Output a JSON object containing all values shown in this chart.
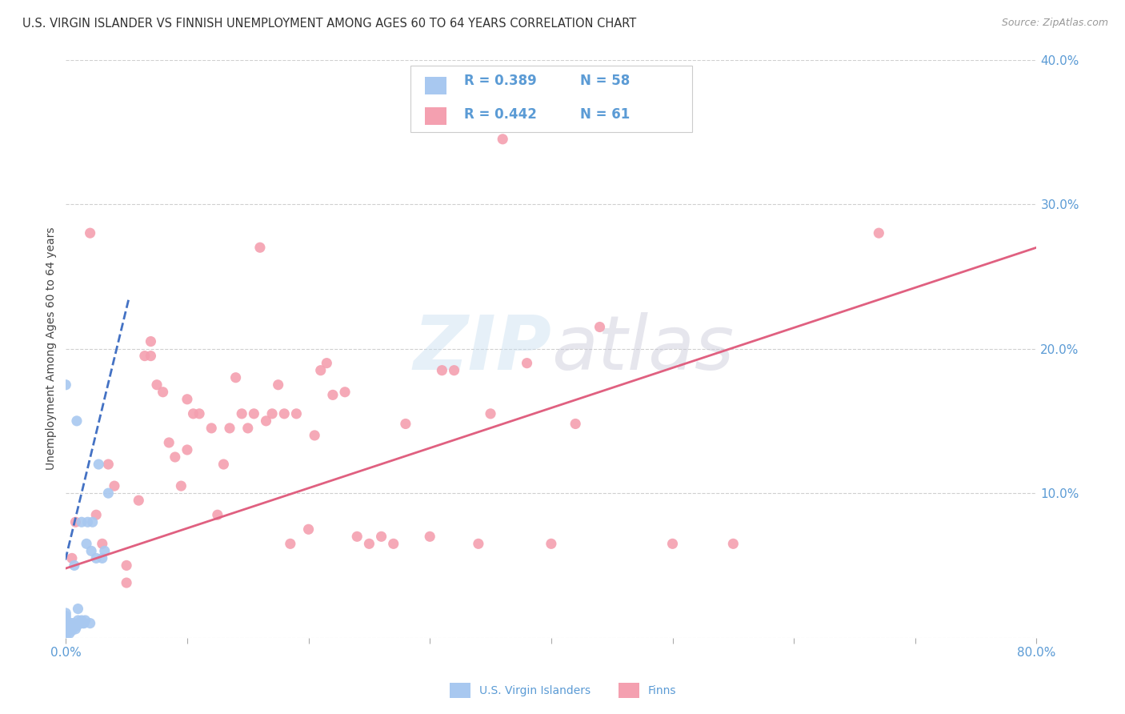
{
  "title": "U.S. VIRGIN ISLANDER VS FINNISH UNEMPLOYMENT AMONG AGES 60 TO 64 YEARS CORRELATION CHART",
  "source": "Source: ZipAtlas.com",
  "ylabel": "Unemployment Among Ages 60 to 64 years",
  "xlim": [
    0,
    0.8
  ],
  "ylim": [
    0,
    0.4
  ],
  "xticks": [
    0.0,
    0.1,
    0.2,
    0.3,
    0.4,
    0.5,
    0.6,
    0.7,
    0.8
  ],
  "yticks": [
    0.0,
    0.1,
    0.2,
    0.3,
    0.4
  ],
  "xtick_labels": [
    "0.0%",
    "",
    "",
    "",
    "",
    "",
    "",
    "",
    "80.0%"
  ],
  "ytick_labels": [
    "",
    "10.0%",
    "20.0%",
    "30.0%",
    "40.0%"
  ],
  "title_color": "#333333",
  "title_fontsize": 10.5,
  "axis_color": "#5b9bd5",
  "watermark_zip": "ZIP",
  "watermark_atlas": "atlas",
  "legend_entries": [
    {
      "label": "U.S. Virgin Islanders",
      "color": "#a8c8f0",
      "R": 0.389,
      "N": 58
    },
    {
      "label": "Finns",
      "color": "#f4a0b0",
      "R": 0.442,
      "N": 61
    }
  ],
  "vi_scatter_x": [
    0.0,
    0.0,
    0.0,
    0.0,
    0.0,
    0.0,
    0.0,
    0.0,
    0.0,
    0.0,
    0.0,
    0.0,
    0.0,
    0.0,
    0.0,
    0.0,
    0.0,
    0.0,
    0.0,
    0.0,
    0.0,
    0.0,
    0.0,
    0.0,
    0.0,
    0.0,
    0.0,
    0.0,
    0.003,
    0.003,
    0.004,
    0.004,
    0.005,
    0.005,
    0.006,
    0.007,
    0.008,
    0.009,
    0.009,
    0.01,
    0.01,
    0.01,
    0.012,
    0.013,
    0.013,
    0.014,
    0.015,
    0.016,
    0.017,
    0.018,
    0.02,
    0.021,
    0.022,
    0.025,
    0.027,
    0.03,
    0.032,
    0.035
  ],
  "vi_scatter_y": [
    0.0,
    0.0,
    0.0,
    0.0,
    0.0,
    0.0,
    0.0,
    0.002,
    0.003,
    0.004,
    0.004,
    0.005,
    0.005,
    0.005,
    0.006,
    0.006,
    0.007,
    0.007,
    0.008,
    0.009,
    0.01,
    0.01,
    0.01,
    0.012,
    0.013,
    0.015,
    0.017,
    0.175,
    0.003,
    0.006,
    0.005,
    0.01,
    0.005,
    0.008,
    0.01,
    0.05,
    0.006,
    0.008,
    0.15,
    0.01,
    0.012,
    0.02,
    0.01,
    0.012,
    0.08,
    0.01,
    0.01,
    0.012,
    0.065,
    0.08,
    0.01,
    0.06,
    0.08,
    0.055,
    0.12,
    0.055,
    0.06,
    0.1
  ],
  "finn_scatter_x": [
    0.005,
    0.008,
    0.02,
    0.025,
    0.03,
    0.035,
    0.04,
    0.05,
    0.05,
    0.06,
    0.065,
    0.07,
    0.07,
    0.075,
    0.08,
    0.085,
    0.09,
    0.095,
    0.1,
    0.1,
    0.105,
    0.11,
    0.12,
    0.125,
    0.13,
    0.135,
    0.14,
    0.145,
    0.15,
    0.155,
    0.16,
    0.165,
    0.17,
    0.175,
    0.18,
    0.185,
    0.19,
    0.2,
    0.205,
    0.21,
    0.215,
    0.22,
    0.23,
    0.24,
    0.25,
    0.26,
    0.27,
    0.28,
    0.3,
    0.31,
    0.32,
    0.34,
    0.35,
    0.36,
    0.38,
    0.4,
    0.42,
    0.44,
    0.5,
    0.55,
    0.67
  ],
  "finn_scatter_y": [
    0.055,
    0.08,
    0.28,
    0.085,
    0.065,
    0.12,
    0.105,
    0.05,
    0.038,
    0.095,
    0.195,
    0.195,
    0.205,
    0.175,
    0.17,
    0.135,
    0.125,
    0.105,
    0.13,
    0.165,
    0.155,
    0.155,
    0.145,
    0.085,
    0.12,
    0.145,
    0.18,
    0.155,
    0.145,
    0.155,
    0.27,
    0.15,
    0.155,
    0.175,
    0.155,
    0.065,
    0.155,
    0.075,
    0.14,
    0.185,
    0.19,
    0.168,
    0.17,
    0.07,
    0.065,
    0.07,
    0.065,
    0.148,
    0.07,
    0.185,
    0.185,
    0.065,
    0.155,
    0.345,
    0.19,
    0.065,
    0.148,
    0.215,
    0.065,
    0.065,
    0.28
  ],
  "vi_trend_x": [
    -0.005,
    0.052
  ],
  "vi_trend_y": [
    0.038,
    0.235
  ],
  "finn_trend_x": [
    0.0,
    0.8
  ],
  "finn_trend_y": [
    0.048,
    0.27
  ],
  "vi_color": "#a8c8f0",
  "vi_line_color": "#4472c4",
  "finn_color": "#f4a0b0",
  "finn_line_color": "#e06080",
  "marker_size": 90,
  "grid_color": "#d0d0d0",
  "legend_R_color": "#5b9bd5",
  "background_color": "#ffffff"
}
